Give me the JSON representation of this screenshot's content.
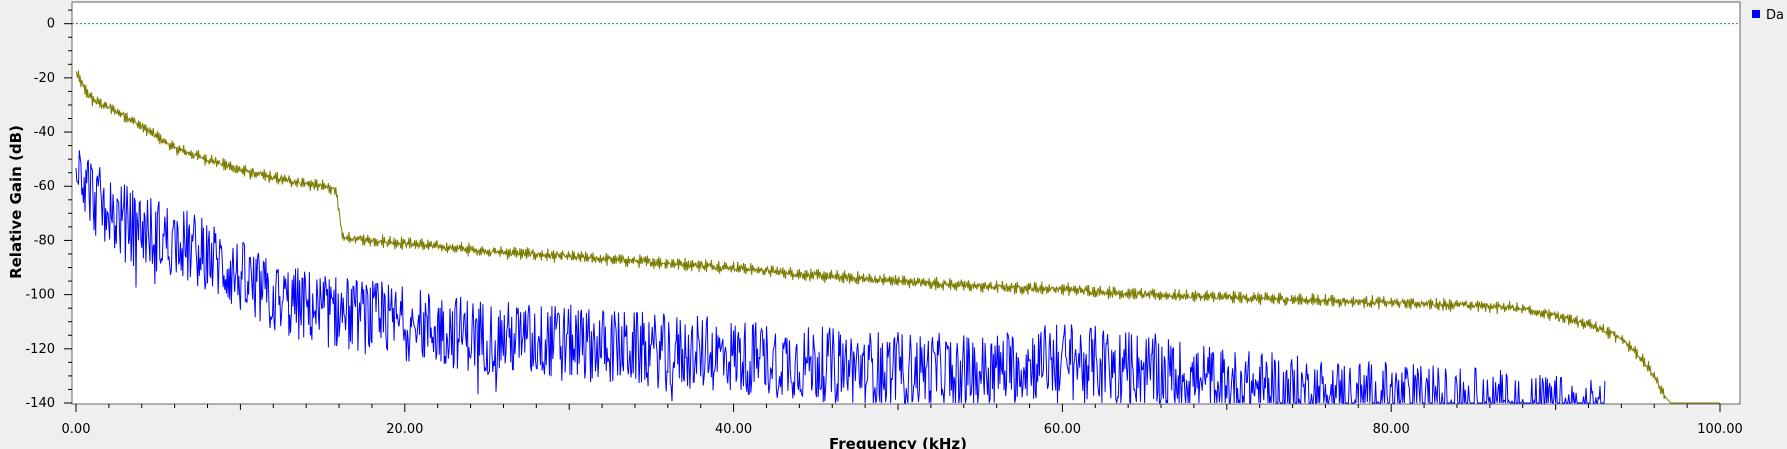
{
  "chart_data": {
    "type": "line",
    "xlabel": "Frequency (kHz)",
    "ylabel": "Relative Gain (dB)",
    "xlim": [
      0,
      100
    ],
    "ylim": [
      -140,
      8
    ],
    "x_ticks": [
      {
        "value": 0,
        "label": "0.00"
      },
      {
        "value": 20,
        "label": "20.00"
      },
      {
        "value": 40,
        "label": "40.00"
      },
      {
        "value": 60,
        "label": "60.00"
      },
      {
        "value": 80,
        "label": "80.00"
      },
      {
        "value": 100,
        "label": "100.00"
      }
    ],
    "y_ticks": [
      {
        "value": 0,
        "label": "0"
      },
      {
        "value": -20,
        "label": "-20"
      },
      {
        "value": -40,
        "label": "-40"
      },
      {
        "value": -60,
        "label": "-60"
      },
      {
        "value": -80,
        "label": "-80"
      },
      {
        "value": -100,
        "label": "-100"
      },
      {
        "value": -120,
        "label": "-120"
      },
      {
        "value": -140,
        "label": "-140"
      }
    ],
    "reference_line": {
      "y": 0,
      "color": "#0f8a8a",
      "style": "dotted"
    },
    "legend": {
      "position": "top-right",
      "entries": [
        {
          "label": "Da",
          "color": "#0000ff"
        }
      ]
    },
    "grid": false,
    "series": [
      {
        "color": "#7b7b00",
        "style": "jagged",
        "x": [
          0,
          0.5,
          1,
          2,
          3,
          4,
          5,
          6,
          8,
          10,
          12,
          14,
          15.8,
          16.2,
          18,
          20,
          25,
          30,
          35,
          40,
          45,
          50,
          55,
          60,
          65,
          70,
          75,
          80,
          85,
          88,
          90,
          92,
          94,
          95,
          96,
          96.7,
          97,
          100
        ],
        "y": [
          -18,
          -24,
          -28,
          -31,
          -34,
          -38,
          -42,
          -46,
          -50,
          -54,
          -57,
          -59,
          -61,
          -79,
          -80,
          -81,
          -84,
          -86,
          -88,
          -90,
          -93,
          -95,
          -97,
          -98,
          -100,
          -101,
          -102,
          -103,
          -104,
          -105,
          -108,
          -111,
          -116,
          -122,
          -130,
          -138,
          -140,
          -140
        ]
      },
      {
        "color": "#0000ff",
        "style": "noisy",
        "x": [
          0,
          0.5,
          1,
          2,
          4,
          6,
          8,
          10,
          12,
          15,
          20,
          25,
          30,
          35,
          40,
          45,
          50,
          55,
          60,
          65,
          70,
          75,
          80,
          85,
          90,
          93
        ],
        "y": [
          -40,
          -50,
          -58,
          -65,
          -70,
          -75,
          -80,
          -88,
          -96,
          -100,
          -105,
          -110,
          -112,
          -115,
          -117,
          -120,
          -122,
          -123,
          -118,
          -122,
          -128,
          -131,
          -133,
          -135,
          -138,
          -140
        ]
      }
    ]
  }
}
